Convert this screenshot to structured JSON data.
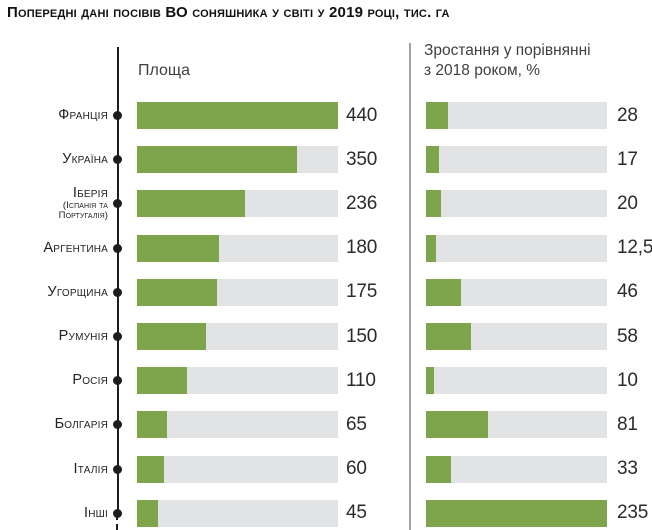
{
  "title": "Попередні дані посівів ВО соняшника у світі у 2019 році, тис. га",
  "left_header": "Площа",
  "right_header_line1": "Зростання у порівнянні",
  "right_header_line2": "з 2018 роком, %",
  "colors": {
    "bar_green": "#7ea44c",
    "bar_track": "#e2e3e5",
    "axis_line": "#1d1d1b",
    "divider_line": "#a3a3a3"
  },
  "chart_data": {
    "type": "bar",
    "title": "Попередні дані посівів ВО соняшника у світі у 2019 році, тис. га",
    "orientation": "horizontal",
    "categories": [
      "Франція",
      "Україна",
      "Іберія",
      "Аргентина",
      "Угорщина",
      "Румунія",
      "Росія",
      "Болгарія",
      "Італія",
      "Інші"
    ],
    "sublabels": [
      [],
      [],
      [
        "(Іспанія та",
        "Португалія)"
      ],
      [],
      [],
      [],
      [],
      [],
      [],
      []
    ],
    "series": [
      {
        "name": "Площа",
        "unit": "тис. га",
        "values": [
          440,
          350,
          236,
          180,
          175,
          150,
          110,
          65,
          60,
          45
        ],
        "value_labels": [
          "440",
          "350",
          "236",
          "180",
          "175",
          "150",
          "110",
          "65",
          "60",
          "45"
        ],
        "axis_max": 440
      },
      {
        "name": "Зростання у порівнянні з 2018 роком, %",
        "unit": "%",
        "values": [
          28,
          17,
          20,
          12.5,
          46,
          58,
          10,
          81,
          33,
          235
        ],
        "value_labels": [
          "28",
          "17",
          "20",
          "12,5",
          "46",
          "58",
          "10",
          "81",
          "33",
          "235"
        ],
        "axis_max": 235
      }
    ],
    "layout_hints": {
      "legend": "none",
      "grid": false,
      "linked_categories": true
    }
  }
}
